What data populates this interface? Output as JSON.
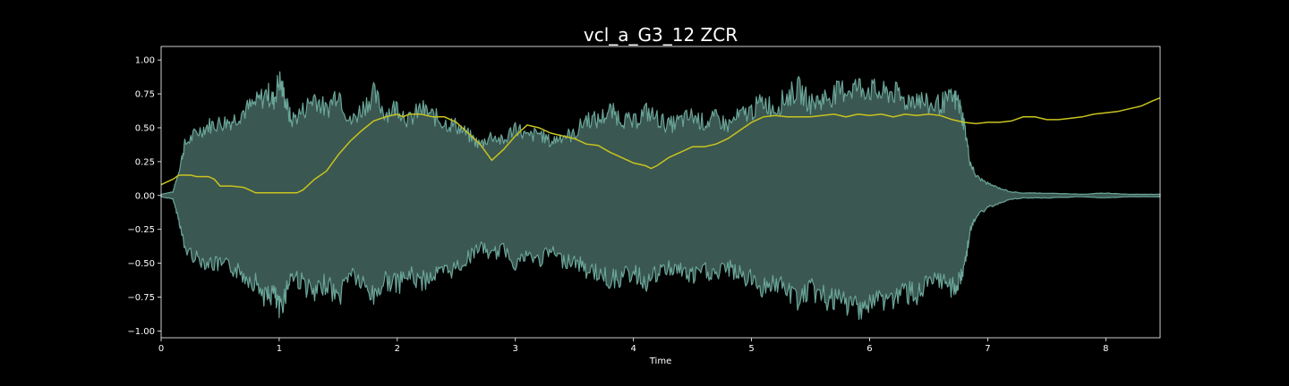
{
  "chart_data": {
    "type": "area",
    "title": "vcl_a_G3_12 ZCR",
    "xlabel": "Time",
    "ylabel": "",
    "xlim": [
      0,
      8.46
    ],
    "ylim": [
      -1.05,
      1.1
    ],
    "xticks": [
      0,
      1,
      2,
      3,
      4,
      5,
      6,
      7,
      8
    ],
    "xtick_labels": [
      "0",
      "1",
      "2",
      "3",
      "4",
      "5",
      "6",
      "7",
      "8"
    ],
    "yticks": [
      1.0,
      0.75,
      0.5,
      0.25,
      0.0,
      -0.25,
      -0.5,
      -0.75,
      -1.0
    ],
    "ytick_labels": [
      "1.00",
      "0.75",
      "0.50",
      "0.25",
      "0.00",
      "−0.25",
      "−0.50",
      "−0.75",
      "−1.00"
    ],
    "grid": false,
    "background": "#000000",
    "series": [
      {
        "kind": "waveform",
        "color": "#3b5751",
        "edge_color": "#6aa598",
        "envelope": {
          "x": [
            0,
            0.1,
            0.15,
            0.2,
            0.3,
            0.4,
            0.5,
            0.6,
            0.7,
            0.8,
            0.9,
            0.95,
            1.0,
            1.05,
            1.1,
            1.2,
            1.3,
            1.4,
            1.5,
            1.6,
            1.7,
            1.8,
            1.9,
            2.0,
            2.1,
            2.2,
            2.3,
            2.4,
            2.5,
            2.6,
            2.7,
            2.8,
            2.9,
            3.0,
            3.1,
            3.2,
            3.3,
            3.4,
            3.5,
            3.6,
            3.7,
            3.8,
            3.9,
            4.0,
            4.1,
            4.2,
            4.3,
            4.4,
            4.5,
            4.6,
            4.7,
            4.8,
            4.9,
            5.0,
            5.1,
            5.2,
            5.3,
            5.4,
            5.5,
            5.6,
            5.7,
            5.8,
            5.9,
            6.0,
            6.1,
            6.2,
            6.3,
            6.4,
            6.5,
            6.6,
            6.7,
            6.75,
            6.8,
            6.85,
            6.9,
            7.0,
            7.1,
            7.2,
            7.3,
            7.5,
            7.8,
            8.0,
            8.2,
            8.46
          ],
          "upper": [
            0.01,
            0.03,
            0.2,
            0.42,
            0.52,
            0.58,
            0.6,
            0.62,
            0.7,
            0.76,
            0.85,
            0.78,
            0.96,
            0.8,
            0.62,
            0.7,
            0.82,
            0.7,
            0.88,
            0.6,
            0.72,
            0.84,
            0.68,
            0.74,
            0.62,
            0.72,
            0.66,
            0.6,
            0.58,
            0.5,
            0.42,
            0.5,
            0.44,
            0.58,
            0.48,
            0.52,
            0.44,
            0.5,
            0.5,
            0.64,
            0.62,
            0.7,
            0.64,
            0.6,
            0.7,
            0.64,
            0.58,
            0.62,
            0.66,
            0.6,
            0.64,
            0.58,
            0.66,
            0.7,
            0.78,
            0.72,
            0.82,
            0.88,
            0.76,
            0.8,
            0.84,
            0.88,
            0.9,
            0.88,
            0.84,
            0.86,
            0.78,
            0.82,
            0.74,
            0.76,
            0.8,
            0.78,
            0.6,
            0.28,
            0.16,
            0.1,
            0.06,
            0.03,
            0.02,
            0.02,
            0.01,
            0.02,
            0.01,
            0.01
          ],
          "lower": [
            -0.01,
            -0.03,
            -0.2,
            -0.44,
            -0.52,
            -0.56,
            -0.58,
            -0.6,
            -0.66,
            -0.72,
            -0.86,
            -0.8,
            -0.96,
            -0.82,
            -0.66,
            -0.72,
            -0.84,
            -0.72,
            -0.86,
            -0.62,
            -0.74,
            -0.84,
            -0.7,
            -0.74,
            -0.66,
            -0.72,
            -0.66,
            -0.64,
            -0.6,
            -0.52,
            -0.42,
            -0.5,
            -0.44,
            -0.56,
            -0.5,
            -0.54,
            -0.46,
            -0.54,
            -0.54,
            -0.62,
            -0.64,
            -0.7,
            -0.68,
            -0.64,
            -0.72,
            -0.66,
            -0.6,
            -0.62,
            -0.68,
            -0.62,
            -0.66,
            -0.6,
            -0.66,
            -0.7,
            -0.76,
            -0.72,
            -0.8,
            -0.86,
            -0.78,
            -0.84,
            -0.88,
            -0.9,
            -0.92,
            -0.9,
            -0.86,
            -0.86,
            -0.8,
            -0.82,
            -0.74,
            -0.72,
            -0.76,
            -0.74,
            -0.6,
            -0.3,
            -0.18,
            -0.1,
            -0.06,
            -0.03,
            -0.02,
            -0.02,
            -0.01,
            -0.02,
            -0.01,
            -0.01
          ]
        }
      },
      {
        "kind": "line",
        "color": "#c8c41e",
        "x": [
          0,
          0.05,
          0.1,
          0.15,
          0.25,
          0.3,
          0.4,
          0.45,
          0.5,
          0.6,
          0.7,
          0.75,
          0.8,
          0.9,
          1.0,
          1.1,
          1.15,
          1.2,
          1.25,
          1.3,
          1.4,
          1.5,
          1.6,
          1.7,
          1.8,
          1.9,
          2.0,
          2.05,
          2.1,
          2.2,
          2.3,
          2.4,
          2.5,
          2.6,
          2.7,
          2.75,
          2.8,
          2.9,
          3.0,
          3.1,
          3.2,
          3.3,
          3.4,
          3.5,
          3.6,
          3.7,
          3.8,
          3.9,
          4.0,
          4.1,
          4.15,
          4.2,
          4.3,
          4.4,
          4.5,
          4.6,
          4.7,
          4.8,
          4.9,
          5.0,
          5.1,
          5.2,
          5.3,
          5.4,
          5.5,
          5.6,
          5.7,
          5.8,
          5.9,
          6.0,
          6.1,
          6.2,
          6.3,
          6.4,
          6.5,
          6.6,
          6.7,
          6.8,
          6.9,
          7.0,
          7.1,
          7.2,
          7.3,
          7.4,
          7.5,
          7.6,
          7.7,
          7.8,
          7.9,
          8.0,
          8.1,
          8.2,
          8.3,
          8.4,
          8.46
        ],
        "y": [
          0.08,
          0.1,
          0.12,
          0.15,
          0.15,
          0.14,
          0.14,
          0.12,
          0.07,
          0.07,
          0.06,
          0.04,
          0.02,
          0.02,
          0.02,
          0.02,
          0.02,
          0.04,
          0.08,
          0.12,
          0.18,
          0.3,
          0.4,
          0.48,
          0.55,
          0.58,
          0.6,
          0.58,
          0.6,
          0.6,
          0.58,
          0.58,
          0.54,
          0.46,
          0.38,
          0.32,
          0.26,
          0.34,
          0.44,
          0.52,
          0.5,
          0.46,
          0.44,
          0.42,
          0.38,
          0.37,
          0.32,
          0.28,
          0.24,
          0.22,
          0.2,
          0.22,
          0.28,
          0.32,
          0.36,
          0.36,
          0.38,
          0.42,
          0.48,
          0.54,
          0.58,
          0.59,
          0.58,
          0.58,
          0.58,
          0.59,
          0.6,
          0.58,
          0.6,
          0.59,
          0.6,
          0.58,
          0.6,
          0.59,
          0.6,
          0.59,
          0.56,
          0.54,
          0.53,
          0.54,
          0.54,
          0.55,
          0.58,
          0.58,
          0.56,
          0.56,
          0.57,
          0.58,
          0.6,
          0.61,
          0.62,
          0.64,
          0.66,
          0.7,
          0.72
        ]
      }
    ]
  }
}
